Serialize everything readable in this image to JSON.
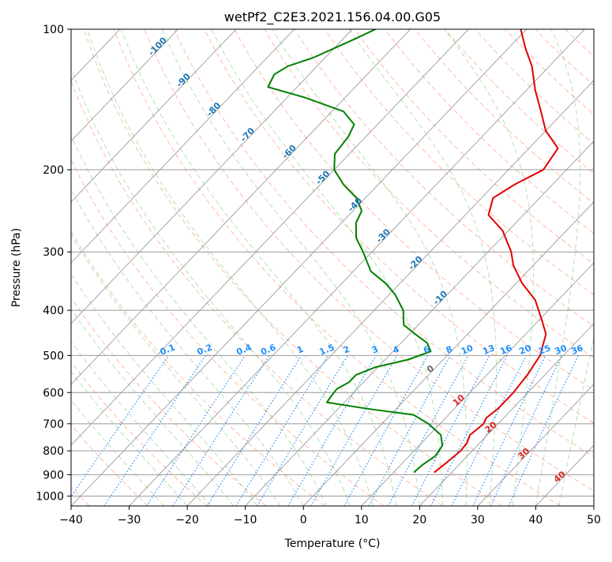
{
  "chart_data": {
    "type": "line",
    "title": "wetPf2_C2E3.2021.156.04.00.G05",
    "xlabel": "Temperature (°C)",
    "ylabel": "Pressure (hPa)",
    "xlim": [
      -40,
      50
    ],
    "ylim": [
      1050,
      100
    ],
    "y_scale": "log",
    "grid": true,
    "x_ticks": [
      -40,
      -30,
      -20,
      -10,
      0,
      10,
      20,
      30,
      40,
      50
    ],
    "y_ticks": [
      100,
      200,
      300,
      400,
      500,
      600,
      700,
      800,
      900,
      1000
    ],
    "series": [
      {
        "role": "temperature",
        "color": "#e00000",
        "points": [
          {
            "p": 890,
            "t": 17.0
          },
          {
            "p": 850,
            "t": 17.5
          },
          {
            "p": 800,
            "t": 18.0
          },
          {
            "p": 770,
            "t": 17.8
          },
          {
            "p": 740,
            "t": 17.0
          },
          {
            "p": 700,
            "t": 17.5
          },
          {
            "p": 680,
            "t": 17.0
          },
          {
            "p": 650,
            "t": 17.5
          },
          {
            "p": 600,
            "t": 17.5
          },
          {
            "p": 550,
            "t": 17.0
          },
          {
            "p": 500,
            "t": 16.0
          },
          {
            "p": 450,
            "t": 13.5
          },
          {
            "p": 420,
            "t": 10.5
          },
          {
            "p": 380,
            "t": 6.0
          },
          {
            "p": 350,
            "t": 1.0
          },
          {
            "p": 320,
            "t": -3.5
          },
          {
            "p": 300,
            "t": -6.0
          },
          {
            "p": 270,
            "t": -11.0
          },
          {
            "p": 250,
            "t": -16.0
          },
          {
            "p": 230,
            "t": -18.0
          },
          {
            "p": 215,
            "t": -16.5
          },
          {
            "p": 200,
            "t": -14.0
          },
          {
            "p": 180,
            "t": -15.0
          },
          {
            "p": 165,
            "t": -20.0
          },
          {
            "p": 150,
            "t": -24.0
          },
          {
            "p": 135,
            "t": -28.5
          },
          {
            "p": 120,
            "t": -33.0
          },
          {
            "p": 110,
            "t": -37.0
          },
          {
            "p": 100,
            "t": -41.0
          }
        ]
      },
      {
        "role": "dewpoint",
        "color": "#008000",
        "points": [
          {
            "p": 890,
            "t": 13.5
          },
          {
            "p": 860,
            "t": 13.7
          },
          {
            "p": 820,
            "t": 14.5
          },
          {
            "p": 780,
            "t": 14.0
          },
          {
            "p": 740,
            "t": 12.0
          },
          {
            "p": 700,
            "t": 8.0
          },
          {
            "p": 670,
            "t": 4.0
          },
          {
            "p": 650,
            "t": -5.0
          },
          {
            "p": 630,
            "t": -13.0
          },
          {
            "p": 610,
            "t": -13.3
          },
          {
            "p": 590,
            "t": -13.5
          },
          {
            "p": 570,
            "t": -12.5
          },
          {
            "p": 550,
            "t": -12.5
          },
          {
            "p": 530,
            "t": -10.5
          },
          {
            "p": 510,
            "t": -6.0
          },
          {
            "p": 490,
            "t": -3.5
          },
          {
            "p": 470,
            "t": -5.5
          },
          {
            "p": 450,
            "t": -9.0
          },
          {
            "p": 430,
            "t": -12.5
          },
          {
            "p": 400,
            "t": -15.0
          },
          {
            "p": 370,
            "t": -19.0
          },
          {
            "p": 350,
            "t": -22.5
          },
          {
            "p": 330,
            "t": -27.0
          },
          {
            "p": 300,
            "t": -31.5
          },
          {
            "p": 280,
            "t": -35.0
          },
          {
            "p": 260,
            "t": -37.5
          },
          {
            "p": 245,
            "t": -38.5
          },
          {
            "p": 230,
            "t": -41.5
          },
          {
            "p": 215,
            "t": -46.0
          },
          {
            "p": 200,
            "t": -50.0
          },
          {
            "p": 185,
            "t": -52.5
          },
          {
            "p": 170,
            "t": -53.0
          },
          {
            "p": 160,
            "t": -54.0
          },
          {
            "p": 150,
            "t": -58.0
          },
          {
            "p": 140,
            "t": -67.0
          },
          {
            "p": 133,
            "t": -75.0
          },
          {
            "p": 125,
            "t": -76.0
          },
          {
            "p": 120,
            "t": -75.0
          },
          {
            "p": 115,
            "t": -72.0
          },
          {
            "p": 105,
            "t": -68.0
          },
          {
            "p": 100,
            "t": -66.0
          }
        ]
      }
    ],
    "dry_adiabat_labels": [
      "-100",
      "-90",
      "-80",
      "-70",
      "-60",
      "-50",
      "-40",
      "-30",
      "-20",
      "-10"
    ],
    "moist_adiabat_labels": [
      "0",
      "10",
      "20",
      "30",
      "40"
    ],
    "mixing_ratio_labels": [
      "0.1",
      "0.2",
      "0.4",
      "0.6",
      "1",
      "1.5",
      "2",
      "3",
      "4",
      "6",
      "8",
      "10",
      "13",
      "16",
      "20",
      "25",
      "30",
      "36"
    ]
  }
}
